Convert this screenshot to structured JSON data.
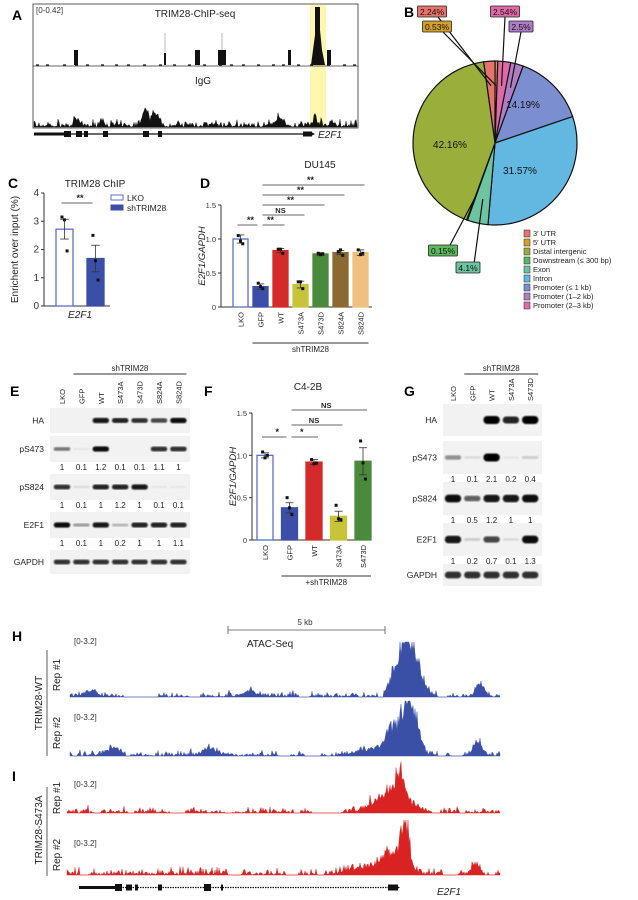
{
  "panels": {
    "a": "A",
    "b": "B",
    "c": "C",
    "d": "D",
    "e": "E",
    "f": "F",
    "g": "G",
    "h": "H",
    "i": "I"
  },
  "panel_a": {
    "range": "[0-0.42]",
    "track1": "TRIM28-ChIP-seq",
    "track2": "IgG",
    "gene": "E2F1",
    "highlight_color": "#fff6b0"
  },
  "panel_h": {
    "scale_bar": "5 kb",
    "title": "ATAC-Seq",
    "group": "TRIM28-WT",
    "rep1": "Rep #1",
    "rep2": "Rep #2",
    "range": "[0-3.2]",
    "color": "#3a4fa6"
  },
  "panel_i": {
    "group": "TRIM28-S473A",
    "rep1": "Rep #1",
    "rep2": "Rep #2",
    "range": "[0-3.2]",
    "gene": "E2F1",
    "color": "#d92323"
  },
  "chart_data": [
    {
      "id": "B",
      "type": "pie",
      "slices": [
        {
          "name": "3′ UTR",
          "value": 2.24,
          "label": "2.24%",
          "color": "#e8736c"
        },
        {
          "name": "5′ UTR",
          "value": 0.53,
          "label": "0.53%",
          "color": "#d4a02a"
        },
        {
          "name": "Promoter (2–3 kb)",
          "value": 2.54,
          "label": "2.54%",
          "color": "#e06aa8"
        },
        {
          "name": "Promoter (1–2 kb)",
          "value": 2.5,
          "label": "2.5%",
          "color": "#b07cc6"
        },
        {
          "name": "Promoter (≤ 1 kb)",
          "value": 14.19,
          "label": "14.19%",
          "color": "#7b8fd0"
        },
        {
          "name": "Intron",
          "value": 31.57,
          "label": "31.57%",
          "color": "#62b8e0"
        },
        {
          "name": "Exon",
          "value": 4.1,
          "label": "4.1%",
          "color": "#6cc4a0"
        },
        {
          "name": "Downstream (≤ 300 bp)",
          "value": 0.15,
          "label": "0.15%",
          "color": "#5cb85c"
        },
        {
          "name": "Distal intergenic",
          "value": 42.16,
          "label": "42.16%",
          "color": "#9aae3c"
        }
      ],
      "legend_order": [
        "3′ UTR",
        "5′ UTR",
        "Distal intergenic",
        "Downstream (≤ 300 bp)",
        "Exon",
        "Intron",
        "Promoter (≤ 1 kb)",
        "Promoter (1–2 kb)",
        "Promoter (2–3 kb)"
      ],
      "legend": "bottom-right"
    },
    {
      "id": "C",
      "type": "bar",
      "title": "TRIM28 ChIP",
      "ylabel": "Enrichent over input (%)",
      "xlabel": "E2F1",
      "ylim": [
        0,
        4
      ],
      "yticks": [
        "0",
        "1",
        "2",
        "3",
        "4"
      ],
      "legend": "top-right",
      "series": [
        {
          "name": "LKO",
          "value": 2.72,
          "error": 0.35,
          "points": [
            3.15,
            3.05,
            1.95
          ],
          "color": "#ffffff",
          "edge": "#5a6fc8"
        },
        {
          "name": "shTRIM28",
          "value": 1.68,
          "error": 0.47,
          "points": [
            2.5,
            1.6,
            0.92
          ],
          "color": "#3b4fa8",
          "edge": "#3b4fa8"
        }
      ],
      "significance": [
        {
          "from": 0,
          "to": 1,
          "label": "**"
        }
      ]
    },
    {
      "id": "D",
      "type": "bar",
      "title": "DU145",
      "ylabel": "E2F1/GAPDH",
      "ylim": [
        0,
        1.5
      ],
      "yticks": [
        "0",
        "0.5",
        "1.0",
        "1.5"
      ],
      "categories": [
        "LKO",
        "GFP",
        "WT",
        "S473A",
        "S473D",
        "S824A",
        "S824D"
      ],
      "values": [
        1.0,
        0.3,
        0.83,
        0.33,
        0.78,
        0.8,
        0.8
      ],
      "errors": [
        0.06,
        0.04,
        0.03,
        0.05,
        0.02,
        0.03,
        0.04
      ],
      "points": [
        [
          1.05,
          0.97,
          0.93
        ],
        [
          0.35,
          0.3,
          0.27
        ],
        [
          0.85,
          0.85,
          0.79
        ],
        [
          0.37,
          0.37,
          0.27
        ],
        [
          0.79,
          0.77,
          0.78
        ],
        [
          0.81,
          0.84,
          0.76
        ],
        [
          0.84,
          0.77,
          0.79
        ]
      ],
      "colors": [
        "#ffffff",
        "#3b4fa8",
        "#d42a2a",
        "#c8c43a",
        "#4a8a3c",
        "#8a6a30",
        "#f0c080"
      ],
      "edges": [
        "#5a6fc8",
        "#3b4fa8",
        "#d42a2a",
        "#c8c43a",
        "#4a8a3c",
        "#8a6a30",
        "#f0c080"
      ],
      "group_label": "shTRIM28",
      "significance": [
        {
          "from": 0,
          "to": 1,
          "label": "**"
        },
        {
          "from": 1,
          "to": 2,
          "label": "**"
        },
        {
          "from": 1,
          "to": 3,
          "label": "NS"
        },
        {
          "from": 1,
          "to": 4,
          "label": "**"
        },
        {
          "from": 1,
          "to": 5,
          "label": "**"
        },
        {
          "from": 1,
          "to": 6,
          "label": "**"
        }
      ]
    },
    {
      "id": "F",
      "type": "bar",
      "title": "C4-2B",
      "ylabel": "E2F1/GAPDH",
      "ylim": [
        0,
        1.5
      ],
      "yticks": [
        "0",
        "0.5",
        "1.0",
        "1.5"
      ],
      "categories": [
        "LKO",
        "GFP",
        "WT",
        "S473A",
        "S473D"
      ],
      "values": [
        1.0,
        0.38,
        0.92,
        0.28,
        0.93
      ],
      "errors": [
        0.03,
        0.06,
        0.03,
        0.06,
        0.16
      ],
      "points": [
        [
          1.04,
          0.97,
          1.0
        ],
        [
          0.5,
          0.38,
          0.3
        ],
        [
          0.95,
          0.9,
          0.91
        ],
        [
          0.41,
          0.25,
          0.24
        ],
        [
          1.17,
          0.91,
          0.72
        ]
      ],
      "colors": [
        "#ffffff",
        "#3b4fa8",
        "#d42a2a",
        "#c8c43a",
        "#4a8a3c"
      ],
      "edges": [
        "#5a6fc8",
        "#3b4fa8",
        "#d42a2a",
        "#c8c43a",
        "#4a8a3c"
      ],
      "group_label": "+shTRIM28",
      "significance": [
        {
          "from": 0,
          "to": 1,
          "label": "*"
        },
        {
          "from": 1,
          "to": 2,
          "label": "*"
        },
        {
          "from": 1,
          "to": 3,
          "label": "NS"
        },
        {
          "from": 1,
          "to": 4,
          "label": "NS"
        }
      ]
    }
  ],
  "blots": [
    {
      "id": "E",
      "header": "shTRIM28",
      "lanes": [
        "LKO",
        "GFP",
        "WT",
        "S473A",
        "S473D",
        "S824A",
        "S824D"
      ],
      "rows": [
        {
          "label": "HA",
          "bands": [
            0,
            0,
            0.9,
            0.85,
            0.8,
            0.7,
            0.95
          ]
        },
        {
          "label": "pS473",
          "bands": [
            0.5,
            0.05,
            0.95,
            0,
            0,
            0.8,
            0.8
          ],
          "quant": [
            "1",
            "0.1",
            "1.2",
            "0.1",
            "0.1",
            "1.1",
            "1"
          ]
        },
        {
          "label": "pS824",
          "bands": [
            0.8,
            0.1,
            0.85,
            0.85,
            0.9,
            0.05,
            0.05
          ],
          "quant": [
            "1",
            "0.1",
            "1",
            "1.2",
            "1",
            "0.1",
            "0.1"
          ]
        },
        {
          "label": "E2F1",
          "bands": [
            0.95,
            0.35,
            0.9,
            0.25,
            0.85,
            0.85,
            0.85
          ],
          "quant": [
            "1",
            "0.1",
            "1",
            "0.2",
            "1",
            "1",
            "1.1"
          ]
        },
        {
          "label": "GAPDH",
          "bands": [
            0.8,
            0.8,
            0.8,
            0.8,
            0.8,
            0.8,
            0.8
          ]
        }
      ]
    },
    {
      "id": "G",
      "header": "shTRIM28",
      "lanes": [
        "LKO",
        "GFP",
        "WT",
        "S473A",
        "S473D"
      ],
      "rows": [
        {
          "label": "HA",
          "bands": [
            0,
            0,
            1,
            0.85,
            1
          ]
        },
        {
          "label": "pS473",
          "bands": [
            0.4,
            0.1,
            1,
            0.05,
            0.15
          ],
          "quant": [
            "1",
            "0.1",
            "2.1",
            "0.2",
            "0.4"
          ]
        },
        {
          "label": "pS824",
          "bands": [
            0.95,
            0.6,
            0.9,
            0.9,
            0.95
          ],
          "quant": [
            "1",
            "0.5",
            "1.2",
            "1",
            "1"
          ]
        },
        {
          "label": "E2F1",
          "bands": [
            0.9,
            0.15,
            0.7,
            0.1,
            0.95
          ],
          "quant": [
            "1",
            "0.2",
            "0.7",
            "0.1",
            "1.3"
          ]
        },
        {
          "label": "GAPDH",
          "bands": [
            0.8,
            0.8,
            0.8,
            0.8,
            0.8
          ]
        }
      ]
    }
  ]
}
